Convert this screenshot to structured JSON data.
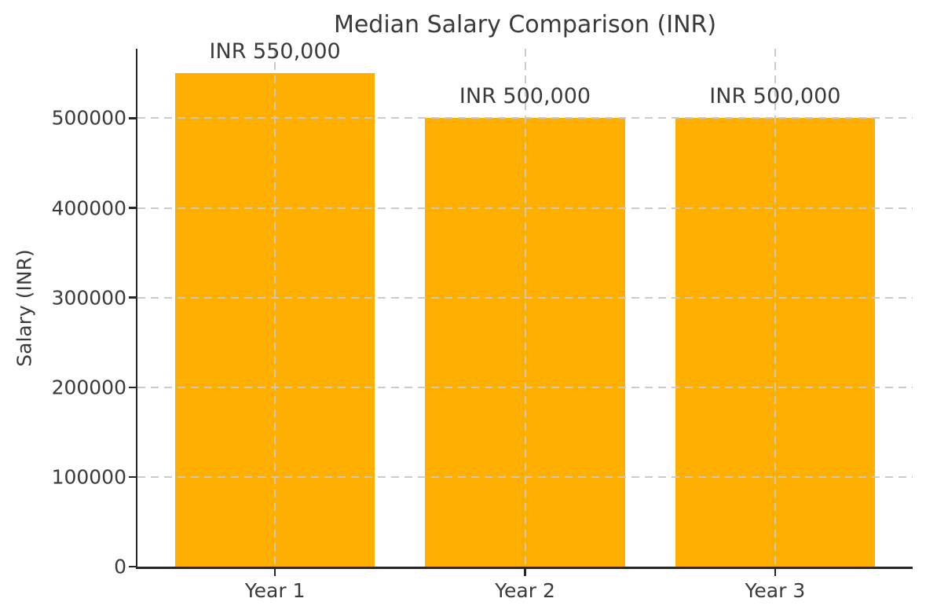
{
  "figure": {
    "background": "#ffffff",
    "text_color": "#3a3a3a",
    "spine_color": "#262626",
    "grid_color": "#c8c8c8"
  },
  "chart_data": {
    "type": "bar",
    "title": "Median Salary Comparison (INR)",
    "xlabel": "",
    "ylabel": "Salary (INR)",
    "categories": [
      "Year 1",
      "Year 2",
      "Year 3"
    ],
    "values": [
      550000,
      500000,
      500000
    ],
    "bar_labels": [
      "INR 550,000",
      "INR 500,000",
      "INR 500,000"
    ],
    "bar_color": "#FFAF00",
    "yticks": [
      0,
      100000,
      200000,
      300000,
      400000,
      500000
    ],
    "ytick_labels": [
      "0",
      "100000",
      "200000",
      "300000",
      "400000",
      "500000"
    ],
    "ylim": [
      0,
      577500
    ],
    "grid": {
      "linestyle": "dashed",
      "which": "both",
      "drawn_above_bars": true
    },
    "legend_position": "none"
  }
}
